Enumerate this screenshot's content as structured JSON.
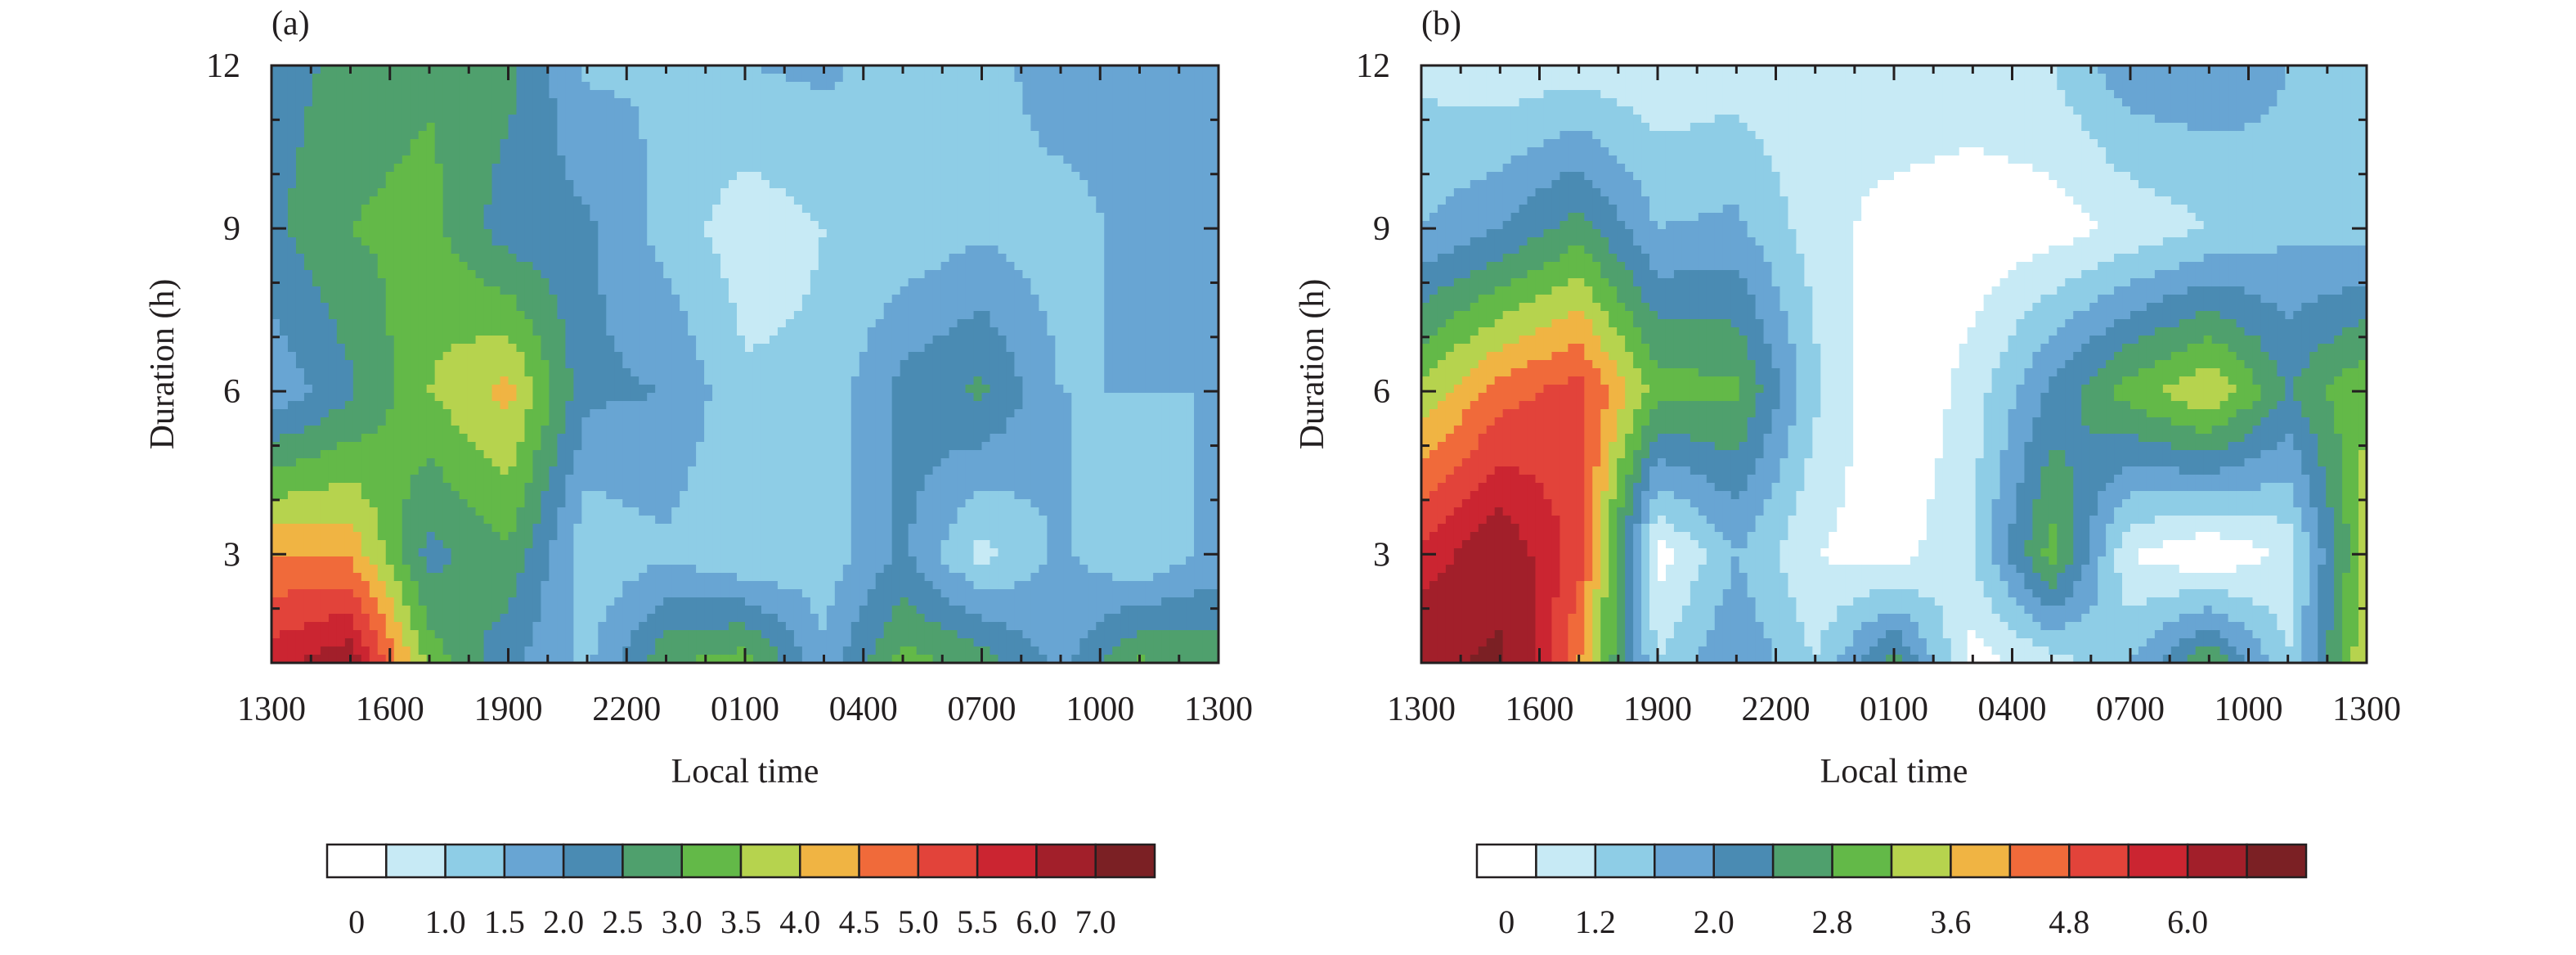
{
  "colors": {
    "levels": [
      "#ffffff",
      "#c7eaf5",
      "#8ecde6",
      "#68a5d3",
      "#4a8bb3",
      "#4fa06d",
      "#63b948",
      "#b6d34e",
      "#f0b443",
      "#f06a3a",
      "#e2433a",
      "#cb2531",
      "#a21f2a",
      "#7b2024"
    ],
    "frame": "#231f20"
  },
  "chart_data": [
    {
      "type": "heatmap",
      "panel": "(a)",
      "xlabel": "Local time",
      "ylabel": "Duration (h)",
      "x_ticks": [
        "1300",
        "1600",
        "1900",
        "2200",
        "0100",
        "0400",
        "0700",
        "1000",
        "1300"
      ],
      "y_ticks": [
        "3",
        "6",
        "9",
        "12"
      ],
      "ylim": [
        1,
        12
      ],
      "colorbar_labels": [
        "0",
        "1.0",
        "1.5",
        "2.0",
        "2.5",
        "3.0",
        "3.5",
        "4.0",
        "4.5",
        "5.0",
        "5.5",
        "6.0",
        "7.0"
      ],
      "colorbar_bounds": [
        0,
        0.5,
        1.0,
        1.5,
        2.0,
        2.5,
        3.0,
        3.5,
        4.0,
        4.5,
        5.0,
        5.5,
        6.0,
        7.0
      ],
      "duration_rows": [
        1,
        3,
        6,
        9,
        12
      ],
      "values": [
        [
          5.8,
          6.4,
          3.3,
          2.1,
          1.4,
          2.9,
          3.3,
          1.6,
          3.2,
          2.8,
          1.8,
          3.1,
          2.8
        ],
        [
          4.5,
          4.4,
          2.3,
          2.9,
          1.1,
          1.4,
          1.0,
          1.2,
          2.1,
          0.8,
          1.6,
          1.0,
          1.7
        ],
        [
          1.6,
          2.4,
          3.5,
          4.2,
          2.1,
          2.0,
          1.1,
          1.1,
          2.2,
          2.6,
          1.5,
          1.5,
          1.5
        ],
        [
          2.4,
          3.0,
          3.2,
          2.2,
          2.1,
          1.3,
          0.7,
          1.0,
          1.1,
          1.4,
          1.2,
          1.7,
          1.5
        ],
        [
          2.2,
          2.7,
          2.9,
          2.7,
          1.4,
          1.5,
          1.5,
          1.6,
          1.3,
          1.2,
          1.9,
          1.9,
          1.9
        ]
      ]
    },
    {
      "type": "heatmap",
      "panel": "(b)",
      "xlabel": "Local time",
      "ylabel": "Duration (h)",
      "x_ticks": [
        "1300",
        "1600",
        "1900",
        "2200",
        "0100",
        "0400",
        "0700",
        "1000",
        "1300"
      ],
      "y_ticks": [
        "3",
        "6",
        "9",
        "12"
      ],
      "ylim": [
        1,
        12
      ],
      "colorbar_labels": [
        "0",
        "1.2",
        "2.0",
        "2.8",
        "3.6",
        "4.8",
        "6.0"
      ],
      "colorbar_bounds": [
        0,
        0.8,
        1.2,
        1.6,
        2.0,
        2.4,
        2.8,
        3.2,
        3.6,
        4.0,
        4.4,
        4.8,
        5.2,
        6.0
      ],
      "duration_rows": [
        1,
        3,
        6,
        9,
        12
      ],
      "values": [
        [
          5.7,
          6.2,
          4.0,
          1.2,
          2.0,
          1.2,
          2.6,
          0.6,
          1.0,
          1.6,
          2.8,
          1.2,
          3.6
        ],
        [
          4.9,
          5.6,
          4.6,
          0.6,
          1.6,
          0.8,
          0.6,
          1.2,
          3.0,
          0.8,
          0.4,
          0.9,
          3.4
        ],
        [
          3.3,
          4.2,
          4.6,
          3.0,
          2.9,
          1.3,
          0.3,
          1.0,
          2.1,
          3.0,
          3.6,
          2.4,
          3.2
        ],
        [
          1.6,
          2.0,
          2.6,
          1.6,
          1.7,
          1.0,
          0.6,
          0.5,
          0.6,
          0.9,
          1.2,
          1.5,
          1.4
        ],
        [
          1.1,
          0.9,
          1.0,
          0.9,
          1.0,
          0.8,
          1.2,
          1.1,
          1.2,
          1.9,
          1.9,
          1.6,
          1.4
        ]
      ]
    }
  ]
}
